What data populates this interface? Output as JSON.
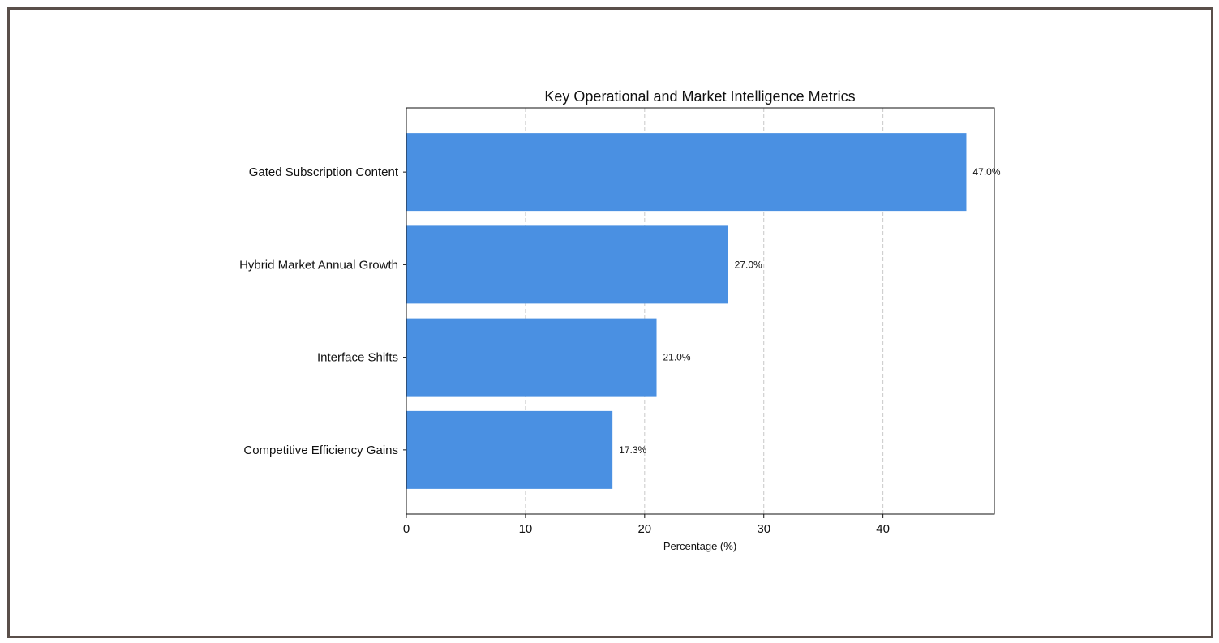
{
  "chart_data": {
    "type": "bar",
    "orientation": "horizontal",
    "title": "Key Operational and Market Intelligence Metrics",
    "xlabel": "Percentage (%)",
    "ylabel": "",
    "categories": [
      "Gated Subscription Content",
      "Hybrid Market Annual Growth",
      "Interface Shifts",
      "Competitive Efficiency Gains"
    ],
    "values": [
      47.0,
      27.0,
      21.0,
      17.3
    ],
    "data_labels": [
      "47.0%",
      "27.0%",
      "21.0%",
      "17.3%"
    ],
    "xlim": [
      0,
      49.35
    ],
    "xticks": [
      0,
      10,
      20,
      30,
      40
    ],
    "grid": "x-dashed",
    "bar_color": "#4a90e2"
  }
}
